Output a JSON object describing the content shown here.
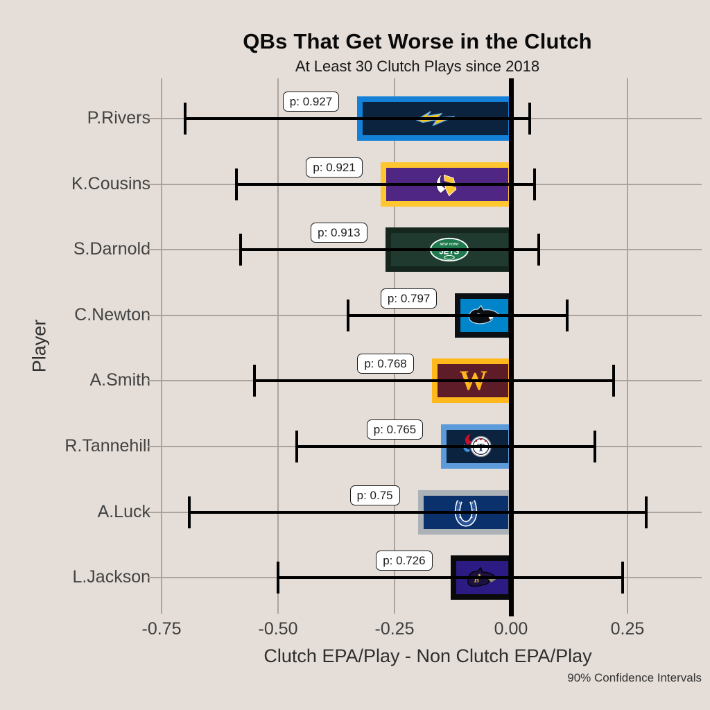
{
  "title": "QBs That Get Worse in the Clutch",
  "subtitle": "At Least 30 Clutch Plays since 2018",
  "caption": "90% Confidence Intervals",
  "x_axis": {
    "label": "Clutch EPA/Play - Non Clutch EPA/Play",
    "tick_labels": [
      "-0.75",
      "-0.50",
      "-0.25",
      "0.00",
      "0.25"
    ],
    "tick_values": [
      -0.75,
      -0.5,
      -0.25,
      0,
      0.25
    ]
  },
  "y_axis": {
    "label": "Player"
  },
  "colors": {
    "background": "#E5DED8",
    "grid": "#ABA39E",
    "axis_text": "#3C3C3C",
    "errorbar": "#000000",
    "zero_line": "#000000",
    "p_label_bg": "#FFFFFF",
    "p_label_border": "#1A1A1A"
  },
  "chart_data": {
    "type": "bar",
    "orientation": "horizontal",
    "title": "QBs That Get Worse in the Clutch",
    "subtitle": "At Least 30 Clutch Plays since 2018",
    "xlabel": "Clutch EPA/Play - Non Clutch EPA/Play",
    "ylabel": "Player",
    "xlim": [
      -0.766,
      0.409
    ],
    "grid": true,
    "zero_reference_line": 0,
    "confidence_level": "90%",
    "players": [
      {
        "name": "P.Rivers",
        "team": "Los Angeles Chargers",
        "p_text": "p: 0.927",
        "p_value": 0.927,
        "value": -0.33,
        "ci_low": -0.7,
        "ci_high": 0.04,
        "bar_fill": "#0C2340",
        "bar_border": "#1480D8",
        "logo": "chargers-bolt-icon"
      },
      {
        "name": "K.Cousins",
        "team": "Minnesota Vikings",
        "p_text": "p: 0.921",
        "p_value": 0.921,
        "value": -0.28,
        "ci_low": -0.59,
        "ci_high": 0.05,
        "bar_fill": "#4F2683",
        "bar_border": "#FFC62F",
        "logo": "vikings-head-icon"
      },
      {
        "name": "S.Darnold",
        "team": "New York Jets",
        "p_text": "p: 0.913",
        "p_value": 0.913,
        "value": -0.27,
        "ci_low": -0.58,
        "ci_high": 0.06,
        "bar_fill": "#203A30",
        "bar_border": "#14261D",
        "logo": "jets-oval-icon"
      },
      {
        "name": "C.Newton",
        "team": "Carolina Panthers",
        "p_text": "p: 0.797",
        "p_value": 0.797,
        "value": -0.12,
        "ci_low": -0.35,
        "ci_high": 0.12,
        "bar_fill": "#0085CA",
        "bar_border": "#0C1014",
        "logo": "panthers-head-icon"
      },
      {
        "name": "A.Smith",
        "team": "Washington",
        "p_text": "p: 0.768",
        "p_value": 0.768,
        "value": -0.17,
        "ci_low": -0.55,
        "ci_high": 0.22,
        "bar_fill": "#5E1B28",
        "bar_border": "#FFB81C",
        "logo": "washington-w-icon"
      },
      {
        "name": "R.Tannehill",
        "team": "Tennessee Titans",
        "p_text": "p: 0.765",
        "p_value": 0.765,
        "value": -0.15,
        "ci_low": -0.46,
        "ci_high": 0.18,
        "bar_fill": "#0C2340",
        "bar_border": "#5C9BD9",
        "logo": "titans-circle-icon"
      },
      {
        "name": "A.Luck",
        "team": "Indianapolis Colts",
        "p_text": "p: 0.75",
        "p_value": 0.75,
        "value": -0.2,
        "ci_low": -0.69,
        "ci_high": 0.29,
        "bar_fill": "#0A316B",
        "bar_border": "#ACB2B6",
        "logo": "colts-horseshoe-icon"
      },
      {
        "name": "L.Jackson",
        "team": "Baltimore Ravens",
        "p_text": "p: 0.726",
        "p_value": 0.726,
        "value": -0.13,
        "ci_low": -0.5,
        "ci_high": 0.24,
        "bar_fill": "#2B1B82",
        "bar_border": "#0A0A0A",
        "logo": "ravens-head-icon"
      }
    ]
  }
}
